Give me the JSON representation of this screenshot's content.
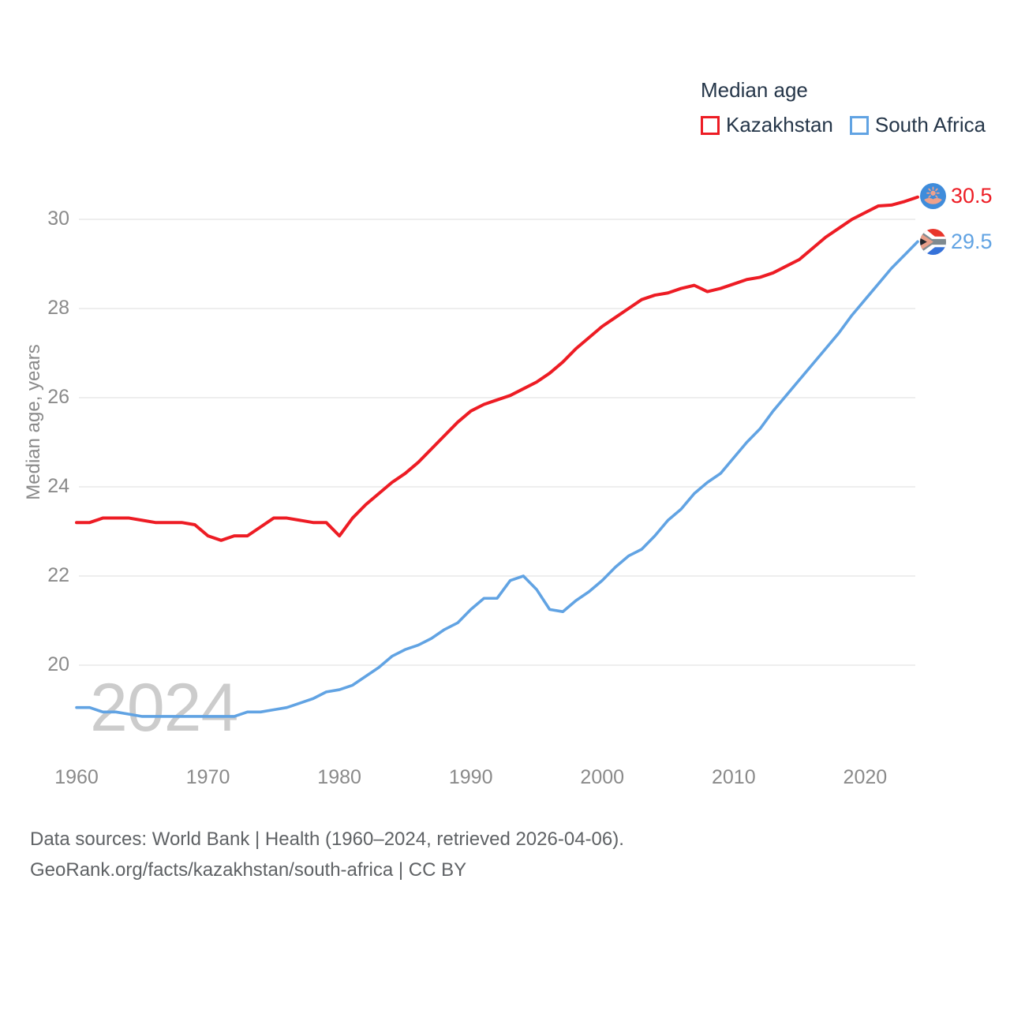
{
  "legend": {
    "title": "Median age",
    "items": [
      {
        "label": "Kazakhstan",
        "color": "#ed1c24"
      },
      {
        "label": "South Africa",
        "color": "#61a3e3"
      }
    ]
  },
  "watermark": "2024",
  "end_labels": {
    "kazakhstan": {
      "value": "30.5",
      "flag_icon": "kazakhstan-flag-icon",
      "color": "#ed1c24"
    },
    "south_africa": {
      "value": "29.5",
      "flag_icon": "south-africa-flag-icon",
      "color": "#61a3e3"
    }
  },
  "footer": {
    "line1": "Data sources: World Bank | Health (1960–2024, retrieved 2026-04-06).",
    "line2": "GeoRank.org/facts/kazakhstan/south-africa | CC BY"
  },
  "chart_data": {
    "type": "line",
    "title": "Median age",
    "xlabel": "",
    "ylabel": "Median age, years",
    "x_start": 1960,
    "x_end": 2024,
    "xticks": [
      1960,
      1970,
      1980,
      1990,
      2000,
      2010,
      2020
    ],
    "yticks": [
      20,
      22,
      24,
      26,
      28,
      30
    ],
    "ylim": [
      18.5,
      31.0
    ],
    "grid": "horizontal",
    "legend_position": "top-right",
    "grid_color": "#e9e9e9",
    "series": [
      {
        "name": "Kazakhstan",
        "color": "#ed1c24",
        "line_width": 4,
        "end_value_label": "30.5",
        "values": [
          23.2,
          23.2,
          23.3,
          23.3,
          23.3,
          23.25,
          23.2,
          23.2,
          23.2,
          23.15,
          22.9,
          22.8,
          22.9,
          22.9,
          23.1,
          23.3,
          23.3,
          23.25,
          23.2,
          23.2,
          22.9,
          23.3,
          23.6,
          23.85,
          24.1,
          24.3,
          24.55,
          24.85,
          25.15,
          25.45,
          25.7,
          25.85,
          25.95,
          26.05,
          26.2,
          26.35,
          26.55,
          26.8,
          27.1,
          27.35,
          27.6,
          27.8,
          28.0,
          28.2,
          28.3,
          28.35,
          28.45,
          28.52,
          28.38,
          28.45,
          28.55,
          28.65,
          28.7,
          28.8,
          28.95,
          29.1,
          29.35,
          29.6,
          29.8,
          30.0,
          30.15,
          30.3,
          30.32,
          30.4,
          30.5
        ]
      },
      {
        "name": "South Africa",
        "color": "#61a3e3",
        "line_width": 3.6,
        "end_value_label": "29.5",
        "values": [
          19.05,
          19.05,
          18.95,
          18.95,
          18.9,
          18.85,
          18.85,
          18.85,
          18.85,
          18.85,
          18.85,
          18.85,
          18.85,
          18.95,
          18.95,
          19.0,
          19.05,
          19.15,
          19.25,
          19.4,
          19.45,
          19.55,
          19.75,
          19.95,
          20.2,
          20.35,
          20.45,
          20.6,
          20.8,
          20.95,
          21.25,
          21.5,
          21.5,
          21.9,
          22.0,
          21.7,
          21.25,
          21.2,
          21.45,
          21.65,
          21.9,
          22.2,
          22.45,
          22.6,
          22.9,
          23.25,
          23.5,
          23.85,
          24.1,
          24.3,
          24.65,
          25.0,
          25.3,
          25.7,
          26.05,
          26.4,
          26.75,
          27.1,
          27.45,
          27.85,
          28.2,
          28.55,
          28.9,
          29.2,
          29.5
        ]
      }
    ]
  }
}
